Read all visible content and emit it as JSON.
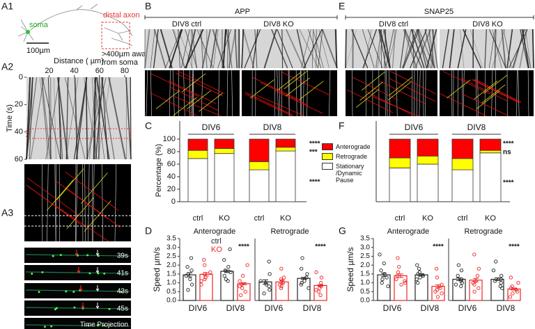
{
  "panel_labels": [
    "A1",
    "A2",
    "A3",
    "B",
    "C",
    "D",
    "E",
    "F",
    "G"
  ],
  "A1": {
    "soma": "soma",
    "distal_axon": "distal axon",
    "distance_note": [
      ">400µm away",
      "from soma"
    ],
    "scale": "100µm"
  },
  "A3": {
    "times": [
      "39s",
      "41s",
      "43s",
      "45s"
    ],
    "projection": "Time Projection"
  },
  "B": {
    "title": "APP",
    "labels": [
      "DIV8 ctrl",
      "DIV8 KO"
    ]
  },
  "E": {
    "title": "SNAP25",
    "labels": [
      "DIV8 ctrl",
      "DIV8 KO"
    ]
  },
  "chart_data": [
    {
      "type": "kymograph",
      "x_label": "Distance ( µm)",
      "y_label": "Time (s)",
      "xlim": [
        2,
        85
      ],
      "xticks": [
        20,
        40,
        60,
        80
      ],
      "ylim": [
        0,
        60
      ],
      "yticks": [
        0,
        20,
        40,
        60
      ],
      "y_inverted": true
    },
    {
      "type": "stacked-bar",
      "y_label": "Percentage (%)",
      "categories": [
        "ctrl",
        "KO",
        "ctrl",
        "KO"
      ],
      "groups": [
        "DIV6",
        "DIV8"
      ],
      "ylim": [
        0,
        100
      ],
      "yticks": [
        0,
        20,
        40,
        60,
        80,
        100
      ],
      "series": [
        {
          "name": "Stationary /Dynamic Pause",
          "color": "#ffffff",
          "values": [
            69,
            77,
            51,
            81
          ]
        },
        {
          "name": "Retrograde",
          "color": "#ffff00",
          "values": [
            13,
            8,
            13,
            6
          ]
        },
        {
          "name": "Anterograde",
          "color": "#ff0000",
          "values": [
            18,
            15,
            36,
            13
          ]
        }
      ],
      "significance": [
        "****",
        "***",
        "****"
      ]
    },
    {
      "type": "dot-bar",
      "title": "Anterograde",
      "y_label": "Speed µm/s",
      "categories": [
        "DIV6",
        "DIV8"
      ],
      "legend": true,
      "ylim": [
        0,
        3.5
      ],
      "yticks": [
        {
          "value": 0,
          "label": "0.0"
        },
        0.5,
        {
          "value": 1,
          "label": "1.0"
        },
        1.5,
        {
          "value": 2,
          "label": "2.0"
        },
        2.5,
        {
          "value": 3,
          "label": "3.0"
        },
        3.5
      ],
      "series": [
        {
          "name": "ctrl",
          "color": "#222222",
          "values": [
            1.45,
            1.65
          ],
          "errors": [
            0.12,
            0.07
          ],
          "points": [
            [
              1.9,
              2.4,
              0.6,
              1.2,
              1.5,
              1.7,
              0.9,
              1.4
            ],
            [
              2.9,
              2.3,
              1.9,
              1.6,
              1.4,
              1.2,
              1.7,
              1.1
            ]
          ]
        },
        {
          "name": "KO",
          "color": "#ee2222",
          "values": [
            1.48,
            0.95
          ],
          "errors": [
            0.1,
            0.06
          ],
          "points": [
            [
              2.0,
              2.3,
              1.1,
              1.3,
              1.6,
              0.9,
              1.5,
              1.2
            ],
            [
              2.0,
              1.4,
              1.1,
              0.9,
              0.7,
              0.5,
              0.3,
              0.8
            ]
          ]
        }
      ],
      "significance": "****"
    },
    {
      "type": "dot-bar",
      "title": "Retrograde",
      "categories": [
        "DIV6",
        "DIV8"
      ],
      "ylim": [
        0,
        3.5
      ],
      "series": [
        {
          "color": "#222222",
          "values": [
            1.05,
            1.25
          ],
          "errors": [
            0.12,
            0.06
          ],
          "points": [
            [
              2.2,
              1.5,
              1.1,
              0.8,
              0.6,
              1.0,
              0.4,
              0.9
            ],
            [
              2.4,
              1.8,
              1.5,
              1.3,
              1.1,
              0.9,
              1.0,
              0.7
            ]
          ]
        },
        {
          "color": "#ee2222",
          "values": [
            1.05,
            0.85
          ],
          "errors": [
            0.1,
            0.05
          ],
          "points": [
            [
              1.8,
              1.3,
              1.1,
              0.9,
              0.7,
              1.0,
              0.8,
              1.2
            ],
            [
              1.6,
              1.3,
              1.0,
              0.8,
              0.6,
              0.5,
              0.3,
              0.7
            ]
          ]
        }
      ],
      "significance": "****"
    },
    {
      "type": "stacked-bar",
      "categories": [
        "ctrl",
        "KO",
        "ctrl",
        "KO"
      ],
      "groups": [
        "DIV6",
        "DIV8"
      ],
      "ylim": [
        0,
        100
      ],
      "series": [
        {
          "color": "#ffffff",
          "values": [
            54,
            60,
            51,
            78
          ]
        },
        {
          "color": "#ffff00",
          "values": [
            16,
            13,
            18,
            4
          ]
        },
        {
          "color": "#ff0000",
          "values": [
            30,
            27,
            31,
            18
          ]
        }
      ],
      "significance": [
        "****",
        "ns",
        "****"
      ]
    },
    {
      "type": "dot-bar",
      "title": "Anterograde",
      "y_label": "Speed µm/s",
      "categories": [
        "DIV6",
        "DIV8"
      ],
      "ylim": [
        0,
        3.5
      ],
      "yticks": [
        {
          "value": 0,
          "label": "0.0"
        },
        0.5,
        {
          "value": 1,
          "label": "1.0"
        },
        1.5,
        {
          "value": 2,
          "label": "2.0"
        },
        2.5,
        {
          "value": 3,
          "label": "3.0"
        },
        3.5
      ],
      "series": [
        {
          "color": "#222222",
          "values": [
            1.45,
            1.45
          ],
          "errors": [
            0.1,
            0.06
          ],
          "points": [
            [
              2.6,
              2.1,
              1.7,
              1.5,
              1.3,
              1.0,
              0.8,
              1.2
            ],
            [
              2.0,
              1.8,
              1.6,
              1.5,
              1.4,
              1.3,
              1.2,
              1.0
            ]
          ]
        },
        {
          "color": "#ee2222",
          "values": [
            1.4,
            0.8
          ],
          "errors": [
            0.1,
            0.08
          ],
          "points": [
            [
              2.4,
              1.9,
              1.6,
              1.4,
              1.2,
              1.0,
              0.9,
              1.1
            ],
            [
              1.8,
              1.3,
              0.9,
              0.7,
              0.5,
              0.4,
              0.2,
              0.6
            ]
          ]
        }
      ],
      "significance": "****"
    },
    {
      "type": "dot-bar",
      "title": "Retrograde",
      "categories": [
        "DIV6",
        "DIV8"
      ],
      "ylim": [
        0,
        3.5
      ],
      "series": [
        {
          "color": "#222222",
          "values": [
            1.2,
            1.2
          ],
          "errors": [
            0.08,
            0.08
          ],
          "points": [
            [
              2.0,
              1.7,
              1.4,
              1.2,
              1.0,
              0.8,
              0.9,
              1.1
            ],
            [
              2.2,
              1.7,
              1.4,
              1.2,
              1.0,
              0.8,
              0.7,
              1.1
            ]
          ]
        },
        {
          "color": "#ee2222",
          "values": [
            1.15,
            0.65
          ],
          "errors": [
            0.1,
            0.06
          ],
          "points": [
            [
              2.6,
              1.8,
              1.4,
              1.1,
              0.9,
              0.7,
              0.5,
              1.0
            ],
            [
              1.3,
              1.0,
              0.8,
              0.6,
              0.5,
              0.4,
              0.2,
              0.7
            ]
          ]
        }
      ],
      "significance": "****"
    }
  ]
}
